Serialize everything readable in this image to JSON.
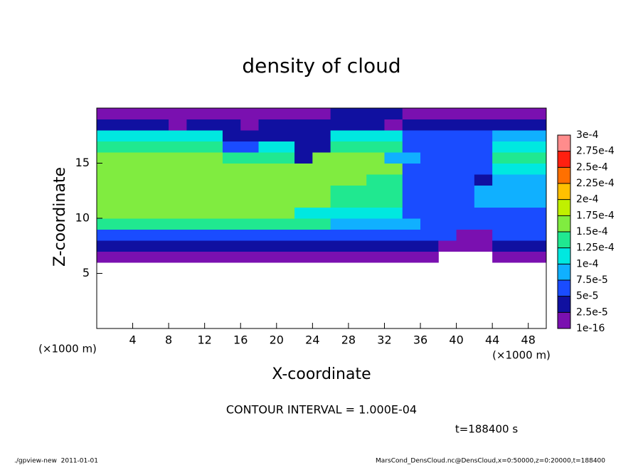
{
  "chart_data": {
    "type": "heatmap",
    "title": "density of cloud",
    "xlabel": "X-coordinate",
    "ylabel": "Z-coordinate",
    "xunit": "(×1000 m)",
    "yunit": "(×1000 m)",
    "annotation": "CONTOUR INTERVAL = 1.000E-04",
    "time_label": "t=188400 s",
    "footer_left": "./gpview-new  2011-01-01",
    "footer_right": "MarsCond_DensCloud.nc@DensCloud,x=0:50000,z=0:20000,t=188400",
    "xlim": [
      0,
      50
    ],
    "ylim": [
      0,
      20
    ],
    "xticks": [
      4,
      8,
      12,
      16,
      20,
      24,
      28,
      32,
      36,
      40,
      44,
      48
    ],
    "yticks": [
      5,
      10,
      15
    ],
    "x": [
      1,
      3,
      5,
      7,
      9,
      11,
      13,
      15,
      17,
      19,
      21,
      23,
      25,
      27,
      29,
      31,
      33,
      35,
      37,
      39,
      41,
      43,
      45,
      47,
      49
    ],
    "y": [
      6.5,
      7.5,
      8.5,
      9.5,
      10.5,
      11.5,
      12.5,
      13.5,
      14.5,
      15.5,
      16.5,
      17.5,
      18.5,
      19.5
    ],
    "values": [
      [
        1e-05,
        1e-05,
        1e-05,
        1e-05,
        1e-05,
        1e-05,
        1e-05,
        1e-05,
        1e-05,
        1e-05,
        1e-05,
        1e-05,
        1e-05,
        1e-05,
        1e-05,
        1e-05,
        1e-05,
        1e-05,
        1e-05,
        null,
        null,
        null,
        1e-05,
        1e-05,
        1e-05
      ],
      [
        4e-05,
        4e-05,
        4e-05,
        4e-05,
        4e-05,
        4e-05,
        4e-05,
        4e-05,
        4e-05,
        4e-05,
        4e-05,
        4e-05,
        4e-05,
        4e-05,
        4e-05,
        4e-05,
        4e-05,
        4e-05,
        4e-05,
        1e-05,
        1e-05,
        1e-05,
        4e-05,
        4e-05,
        4e-05
      ],
      [
        7e-05,
        7e-05,
        7e-05,
        7e-05,
        7e-05,
        7e-05,
        7e-05,
        7e-05,
        7e-05,
        7e-05,
        7e-05,
        7e-05,
        7e-05,
        7e-05,
        7e-05,
        7e-05,
        7e-05,
        7e-05,
        5e-05,
        5e-05,
        1e-05,
        1e-05,
        5e-05,
        5e-05,
        5e-05
      ],
      [
        0.00013,
        0.00013,
        0.00013,
        0.00013,
        0.00013,
        0.00013,
        0.00013,
        0.00013,
        0.00013,
        0.00013,
        0.00013,
        0.00013,
        0.00013,
        9e-05,
        9e-05,
        9e-05,
        9e-05,
        9e-05,
        5e-05,
        5e-05,
        5e-05,
        5e-05,
        5e-05,
        5e-05,
        5e-05
      ],
      [
        0.00015,
        0.00015,
        0.00015,
        0.00015,
        0.00015,
        0.00015,
        0.00015,
        0.00015,
        0.00015,
        0.00015,
        0.00015,
        0.00011,
        0.00011,
        0.00011,
        0.00011,
        0.00011,
        0.00011,
        6e-05,
        6e-05,
        6e-05,
        6e-05,
        6e-05,
        6e-05,
        6e-05,
        6e-05
      ],
      [
        0.00016,
        0.00016,
        0.00016,
        0.00016,
        0.00016,
        0.00016,
        0.00016,
        0.00016,
        0.00016,
        0.00016,
        0.00016,
        0.00016,
        0.00016,
        0.00013,
        0.00013,
        0.00013,
        0.00013,
        6e-05,
        6e-05,
        6e-05,
        6e-05,
        8e-05,
        8e-05,
        8e-05,
        8e-05
      ],
      [
        0.00016,
        0.00016,
        0.00016,
        0.00016,
        0.00016,
        0.00016,
        0.00016,
        0.00016,
        0.00016,
        0.00016,
        0.00016,
        0.00016,
        0.00016,
        0.00013,
        0.00013,
        0.00013,
        0.00013,
        6e-05,
        6e-05,
        6e-05,
        6e-05,
        8e-05,
        8e-05,
        8e-05,
        8e-05
      ],
      [
        0.00016,
        0.00016,
        0.00016,
        0.00016,
        0.00016,
        0.00016,
        0.00016,
        0.00016,
        0.00016,
        0.00016,
        0.00016,
        0.00016,
        0.00016,
        0.00016,
        0.00016,
        0.00014,
        0.00014,
        6e-05,
        6e-05,
        6e-05,
        6e-05,
        4e-05,
        9e-05,
        9e-05,
        9e-05
      ],
      [
        0.000155,
        0.000155,
        0.000155,
        0.000155,
        0.000155,
        0.000155,
        0.000155,
        0.000155,
        0.000155,
        0.000155,
        0.000155,
        0.000155,
        0.000155,
        0.000155,
        0.000155,
        0.000155,
        0.000155,
        5e-05,
        5e-05,
        5e-05,
        5e-05,
        5e-05,
        0.00012,
        0.00012,
        0.00012
      ],
      [
        0.00015,
        0.00015,
        0.00015,
        0.00015,
        0.00015,
        0.00015,
        0.00015,
        0.00013,
        0.00014,
        0.00014,
        0.00014,
        4e-05,
        0.00015,
        0.00015,
        0.00015,
        0.00015,
        9e-05,
        9e-05,
        5e-05,
        5e-05,
        5e-05,
        5e-05,
        0.00013,
        0.00013,
        0.00013
      ],
      [
        0.000135,
        0.000135,
        0.000135,
        0.000135,
        0.000135,
        0.000135,
        0.000135,
        5e-05,
        5e-05,
        0.00012,
        0.00012,
        3e-05,
        3e-05,
        0.00013,
        0.00013,
        0.00013,
        0.00013,
        5e-05,
        5e-05,
        5e-05,
        5e-05,
        5e-05,
        0.0001,
        0.0001,
        0.0001
      ],
      [
        0.00012,
        0.00012,
        0.00012,
        0.00012,
        0.00012,
        0.00012,
        0.00012,
        4e-05,
        4e-05,
        4e-05,
        4e-05,
        3e-05,
        3e-05,
        0.0001,
        0.0001,
        0.0001,
        0.0001,
        5e-05,
        5e-05,
        5e-05,
        5e-05,
        5e-05,
        8e-05,
        8e-05,
        8e-05
      ],
      [
        4e-05,
        4e-05,
        4e-05,
        4e-05,
        1.5e-05,
        4e-05,
        4e-05,
        4e-05,
        1.5e-05,
        4e-05,
        4e-05,
        4e-05,
        4e-05,
        4e-05,
        4e-05,
        4e-05,
        1.5e-05,
        4e-05,
        4e-05,
        4e-05,
        4e-05,
        4e-05,
        4e-05,
        4e-05,
        4e-05
      ],
      [
        1e-05,
        1e-05,
        1e-05,
        1e-05,
        1e-05,
        1e-05,
        1e-05,
        1e-05,
        1e-05,
        1e-05,
        1e-05,
        1e-05,
        1e-05,
        4e-05,
        4e-05,
        4e-05,
        4e-05,
        1e-05,
        1e-05,
        1e-05,
        1e-05,
        1e-05,
        1e-05,
        1e-05,
        1e-05
      ]
    ],
    "colorbar_ticks": [
      {
        "value": 1e-16,
        "label": "1e-16"
      },
      {
        "value": 2.5e-05,
        "label": "2.5e-5"
      },
      {
        "value": 5e-05,
        "label": "5e-5"
      },
      {
        "value": 7.5e-05,
        "label": "7.5e-5"
      },
      {
        "value": 0.0001,
        "label": "1e-4"
      },
      {
        "value": 0.000125,
        "label": "1.25e-4"
      },
      {
        "value": 0.00015,
        "label": "1.5e-4"
      },
      {
        "value": 0.000175,
        "label": "1.75e-4"
      },
      {
        "value": 0.0002,
        "label": "2e-4"
      },
      {
        "value": 0.000225,
        "label": "2.25e-4"
      },
      {
        "value": 0.00025,
        "label": "2.5e-4"
      },
      {
        "value": 0.000275,
        "label": "2.75e-4"
      },
      {
        "value": 0.0003,
        "label": "3e-4"
      }
    ],
    "colors": [
      "#7a10b0",
      "#1010a0",
      "#1a4cff",
      "#10b0ff",
      "#00e8e0",
      "#20e890",
      "#80ec40",
      "#c0f000",
      "#ffc000",
      "#ff7000",
      "#ff2010",
      "#ff8c8c"
    ]
  }
}
